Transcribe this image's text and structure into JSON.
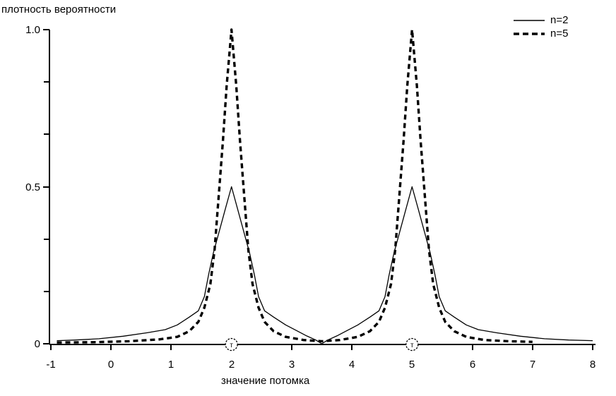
{
  "title": "плотность вероятности",
  "legend": {
    "items": [
      {
        "label": "n=2",
        "line_style": "solid"
      },
      {
        "label": "n=5",
        "line_style": "dashed"
      }
    ]
  },
  "chart_data": {
    "type": "line",
    "title": "плотность вероятности",
    "xlabel": "значение потомка",
    "ylabel": "плотность вероятности",
    "xlim": [
      -1,
      8
    ],
    "ylim": [
      0,
      1.0
    ],
    "grid": false,
    "legend_position": "top-right",
    "x_ticks": [
      {
        "value": -1,
        "label": "-1"
      },
      {
        "value": 0,
        "label": "0"
      },
      {
        "value": 1,
        "label": "1"
      },
      {
        "value": 2,
        "label": "2"
      },
      {
        "value": 3,
        "label": "3"
      },
      {
        "value": 4,
        "label": "4"
      },
      {
        "value": 5,
        "label": "5"
      },
      {
        "value": 6,
        "label": "6"
      },
      {
        "value": 7,
        "label": "7"
      },
      {
        "value": 8,
        "label": "8"
      }
    ],
    "y_ticks": [
      {
        "value": 0,
        "label": "0"
      },
      {
        "value": 0.5,
        "label": "0.5"
      },
      {
        "value": 1.0,
        "label": "1.0"
      }
    ],
    "y_minor_ticks": [
      0.1667,
      0.3333,
      0.6667,
      0.8333
    ],
    "parent_markers": [
      {
        "x": 2,
        "label": "т"
      },
      {
        "x": 5,
        "label": "т"
      }
    ],
    "colors": {
      "line": "#000000",
      "background": "#ffffff"
    },
    "series": [
      {
        "name": "n=2",
        "style": "solid",
        "peaks": [
          {
            "x": 2,
            "height": 0.5
          },
          {
            "x": 5,
            "height": 0.5
          }
        ],
        "points": [
          [
            -0.9,
            0.01
          ],
          [
            -0.6,
            0.012
          ],
          [
            -0.2,
            0.016
          ],
          [
            0.2,
            0.024
          ],
          [
            0.6,
            0.035
          ],
          [
            0.9,
            0.045
          ],
          [
            1.1,
            0.06
          ],
          [
            1.3,
            0.085
          ],
          [
            1.45,
            0.105
          ],
          [
            1.55,
            0.15
          ],
          [
            1.62,
            0.22
          ],
          [
            1.7,
            0.29
          ],
          [
            1.8,
            0.36
          ],
          [
            1.9,
            0.43
          ],
          [
            2.0,
            0.5
          ],
          [
            2.1,
            0.43
          ],
          [
            2.2,
            0.36
          ],
          [
            2.3,
            0.29
          ],
          [
            2.38,
            0.22
          ],
          [
            2.45,
            0.15
          ],
          [
            2.55,
            0.105
          ],
          [
            2.7,
            0.085
          ],
          [
            2.9,
            0.06
          ],
          [
            3.1,
            0.04
          ],
          [
            3.25,
            0.025
          ],
          [
            3.4,
            0.012
          ],
          [
            3.5,
            0.0
          ],
          [
            3.6,
            0.012
          ],
          [
            3.75,
            0.025
          ],
          [
            3.9,
            0.04
          ],
          [
            4.1,
            0.06
          ],
          [
            4.3,
            0.085
          ],
          [
            4.45,
            0.105
          ],
          [
            4.55,
            0.15
          ],
          [
            4.62,
            0.22
          ],
          [
            4.7,
            0.29
          ],
          [
            4.8,
            0.36
          ],
          [
            4.9,
            0.43
          ],
          [
            5.0,
            0.5
          ],
          [
            5.1,
            0.43
          ],
          [
            5.2,
            0.36
          ],
          [
            5.3,
            0.29
          ],
          [
            5.38,
            0.22
          ],
          [
            5.45,
            0.15
          ],
          [
            5.55,
            0.105
          ],
          [
            5.7,
            0.085
          ],
          [
            5.9,
            0.06
          ],
          [
            6.1,
            0.045
          ],
          [
            6.4,
            0.035
          ],
          [
            6.8,
            0.024
          ],
          [
            7.2,
            0.016
          ],
          [
            7.6,
            0.012
          ],
          [
            8.0,
            0.01
          ]
        ]
      },
      {
        "name": "n=5",
        "style": "dashed",
        "peaks": [
          {
            "x": 2,
            "height": 1.0
          },
          {
            "x": 5,
            "height": 1.0
          }
        ],
        "points": [
          [
            -0.9,
            0.004
          ],
          [
            -0.3,
            0.005
          ],
          [
            0.3,
            0.008
          ],
          [
            0.8,
            0.014
          ],
          [
            1.1,
            0.022
          ],
          [
            1.3,
            0.04
          ],
          [
            1.45,
            0.07
          ],
          [
            1.55,
            0.115
          ],
          [
            1.65,
            0.19
          ],
          [
            1.72,
            0.3
          ],
          [
            1.8,
            0.5
          ],
          [
            1.86,
            0.65
          ],
          [
            1.92,
            0.82
          ],
          [
            2.0,
            1.0
          ],
          [
            2.08,
            0.82
          ],
          [
            2.14,
            0.65
          ],
          [
            2.2,
            0.5
          ],
          [
            2.28,
            0.3
          ],
          [
            2.35,
            0.19
          ],
          [
            2.45,
            0.115
          ],
          [
            2.55,
            0.07
          ],
          [
            2.7,
            0.04
          ],
          [
            2.9,
            0.022
          ],
          [
            3.2,
            0.012
          ],
          [
            3.5,
            0.008
          ],
          [
            3.8,
            0.012
          ],
          [
            4.1,
            0.022
          ],
          [
            4.3,
            0.04
          ],
          [
            4.45,
            0.07
          ],
          [
            4.55,
            0.115
          ],
          [
            4.65,
            0.19
          ],
          [
            4.72,
            0.3
          ],
          [
            4.8,
            0.5
          ],
          [
            4.86,
            0.65
          ],
          [
            4.92,
            0.82
          ],
          [
            5.0,
            1.0
          ],
          [
            5.08,
            0.82
          ],
          [
            5.14,
            0.65
          ],
          [
            5.2,
            0.5
          ],
          [
            5.28,
            0.3
          ],
          [
            5.35,
            0.19
          ],
          [
            5.45,
            0.115
          ],
          [
            5.55,
            0.07
          ],
          [
            5.7,
            0.04
          ],
          [
            5.9,
            0.022
          ],
          [
            6.2,
            0.012
          ],
          [
            6.6,
            0.008
          ],
          [
            7.0,
            0.006
          ]
        ]
      }
    ]
  }
}
